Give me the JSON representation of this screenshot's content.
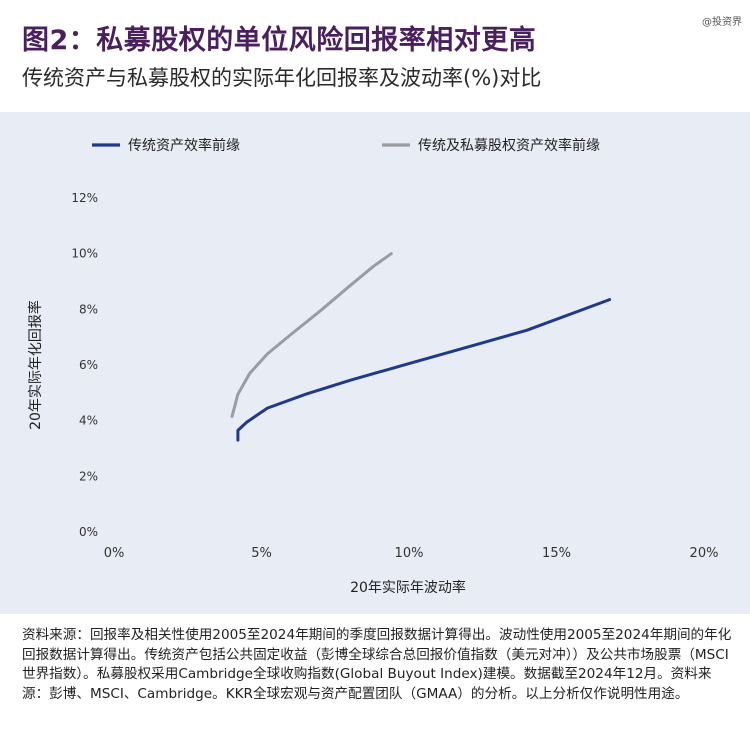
{
  "header": {
    "title": "图2：私募股权的单位风险回报率相对更高",
    "subtitle": "传统资产与私募股权的实际年化回报率及波动率(%)对比",
    "watermark": "@投资界"
  },
  "footnote": "资料来源：回报率及相关性使用2005至2024年期间的季度回报数据计算得出。波动性使用2005至2024年期间的年化回报数据计算得出。传统资产包括公共固定收益（彭博全球综合总回报价值指数（美元对冲））及公共市场股票（MSCI世界指数）。私募股权采用Cambridge全球收购指数(Global Buyout Index)建模。数据截至2024年12月。资料来源：彭博、MSCI、Cambridge。KKR全球宏观与资产配置团队（GMAA）的分析。以上分析仅作说明性用途。",
  "chart_data": {
    "type": "line",
    "xlabel": "20年实际年波动率",
    "ylabel": "20年实际年化回报率",
    "xlim": [
      0,
      20
    ],
    "ylim": [
      0,
      12
    ],
    "x_ticks": [
      "0%",
      "5%",
      "10%",
      "15%",
      "20%"
    ],
    "y_ticks": [
      "0%",
      "2%",
      "4%",
      "6%",
      "8%",
      "10%",
      "12%"
    ],
    "legend_position": "top-left",
    "grid": false,
    "series": [
      {
        "name": "传统资产效率前缘",
        "color": "#1f3a8a",
        "points": [
          [
            4.2,
            3.3
          ],
          [
            4.2,
            3.65
          ],
          [
            4.5,
            3.95
          ],
          [
            5.2,
            4.45
          ],
          [
            6.5,
            4.95
          ],
          [
            8.0,
            5.45
          ],
          [
            10.0,
            6.05
          ],
          [
            12.0,
            6.65
          ],
          [
            14.0,
            7.25
          ],
          [
            16.8,
            8.35
          ]
        ]
      },
      {
        "name": "传统及私募股权资产效率前缘",
        "color": "#9a9ca1",
        "points": [
          [
            4.0,
            4.15
          ],
          [
            4.2,
            4.95
          ],
          [
            4.6,
            5.7
          ],
          [
            5.2,
            6.4
          ],
          [
            6.0,
            7.1
          ],
          [
            7.0,
            7.95
          ],
          [
            8.0,
            8.85
          ],
          [
            8.8,
            9.55
          ],
          [
            9.4,
            10.0
          ]
        ]
      }
    ]
  }
}
